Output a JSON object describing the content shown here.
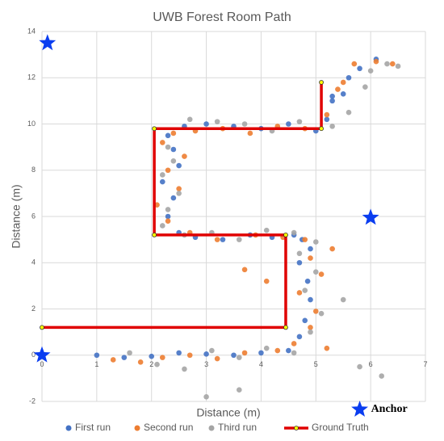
{
  "chart_data": {
    "type": "scatter",
    "title": "UWB Forest Room Path",
    "x_label": "Distance (m)",
    "y_label": "Distance (m)",
    "xlim": [
      0,
      7
    ],
    "ylim": [
      -2,
      14
    ],
    "xticks": [
      0,
      1,
      2,
      3,
      4,
      5,
      6,
      7
    ],
    "yticks": [
      -2,
      0,
      2,
      4,
      6,
      8,
      10,
      12,
      14
    ],
    "grid": true,
    "series": [
      {
        "name": "First run",
        "color": "#4472c4",
        "x": [
          1.0,
          1.5,
          2.0,
          2.5,
          3.0,
          3.5,
          4.0,
          4.5,
          4.7,
          4.8,
          4.9,
          4.85,
          4.7,
          4.9,
          4.75,
          4.6,
          4.2,
          3.8,
          3.3,
          2.8,
          2.5,
          2.3,
          2.4,
          2.2,
          2.5,
          2.4,
          2.3,
          2.6,
          3.0,
          3.5,
          4.0,
          4.5,
          5.0,
          5.2,
          5.3,
          5.5,
          5.8,
          6.1,
          5.6,
          5.3
        ],
        "y": [
          0.0,
          -0.1,
          -0.05,
          0.1,
          0.05,
          0.0,
          0.1,
          0.2,
          0.8,
          1.5,
          2.4,
          3.2,
          4.0,
          4.6,
          5.0,
          5.2,
          5.1,
          5.2,
          5.0,
          5.1,
          5.3,
          6.0,
          6.8,
          7.5,
          8.2,
          8.9,
          9.5,
          9.9,
          10.0,
          9.9,
          9.8,
          10.0,
          9.7,
          10.2,
          11.0,
          11.3,
          12.4,
          12.8,
          12.0,
          11.2
        ]
      },
      {
        "name": "Second run",
        "color": "#ed7d31",
        "x": [
          1.3,
          1.8,
          2.2,
          2.7,
          3.2,
          3.7,
          4.3,
          4.6,
          4.9,
          5.0,
          4.7,
          5.1,
          4.9,
          5.3,
          4.8,
          4.4,
          3.9,
          3.2,
          2.7,
          2.3,
          2.1,
          2.5,
          2.3,
          2.6,
          2.2,
          2.4,
          2.8,
          3.3,
          3.8,
          4.3,
          4.8,
          5.2,
          5.5,
          5.7,
          6.1,
          6.4,
          5.4,
          3.7,
          4.1,
          5.2
        ],
        "y": [
          -0.2,
          -0.3,
          -0.1,
          0.0,
          -0.15,
          0.1,
          0.2,
          0.5,
          1.2,
          1.9,
          2.7,
          3.5,
          4.2,
          4.6,
          5.0,
          5.1,
          5.2,
          5.0,
          5.3,
          5.8,
          6.5,
          7.2,
          8.0,
          8.6,
          9.2,
          9.6,
          9.7,
          9.8,
          9.6,
          9.9,
          9.8,
          10.4,
          11.8,
          12.6,
          12.7,
          12.6,
          11.5,
          3.7,
          3.2,
          0.3
        ]
      },
      {
        "name": "Third run",
        "color": "#a5a5a5",
        "x": [
          1.6,
          2.1,
          2.6,
          3.1,
          3.6,
          4.1,
          4.6,
          4.9,
          5.1,
          4.8,
          5.0,
          4.7,
          5.0,
          4.6,
          4.1,
          3.6,
          3.1,
          2.6,
          2.2,
          2.3,
          2.5,
          2.2,
          2.4,
          2.3,
          2.7,
          3.2,
          3.7,
          4.2,
          4.7,
          5.3,
          5.6,
          5.9,
          6.0,
          6.3,
          6.5,
          5.8,
          3.0,
          3.6,
          6.2,
          5.5
        ],
        "y": [
          0.1,
          -0.4,
          -0.6,
          0.2,
          -0.1,
          0.3,
          0.1,
          1.0,
          1.8,
          2.8,
          3.6,
          4.4,
          4.9,
          5.3,
          5.4,
          5.0,
          5.3,
          5.2,
          5.6,
          6.3,
          7.0,
          7.8,
          8.4,
          9.0,
          10.2,
          10.1,
          10.0,
          9.7,
          10.1,
          9.9,
          10.5,
          11.6,
          12.3,
          12.6,
          12.5,
          -0.5,
          -1.8,
          -1.5,
          -0.9,
          2.4
        ]
      }
    ],
    "ground_truth": {
      "name": "Ground Truth",
      "color": "#e00000",
      "marker_color": "#ffff00",
      "x": [
        0,
        4.45,
        4.45,
        2.05,
        2.05,
        5.1,
        5.1
      ],
      "y": [
        1.2,
        1.2,
        5.2,
        5.2,
        9.8,
        9.8,
        11.8
      ]
    },
    "anchors": {
      "label": "Anchor",
      "color": "#0a3df0",
      "x": [
        0.1,
        0,
        6,
        5.8
      ],
      "y": [
        13.5,
        0,
        5.95,
        -2.35
      ]
    }
  }
}
